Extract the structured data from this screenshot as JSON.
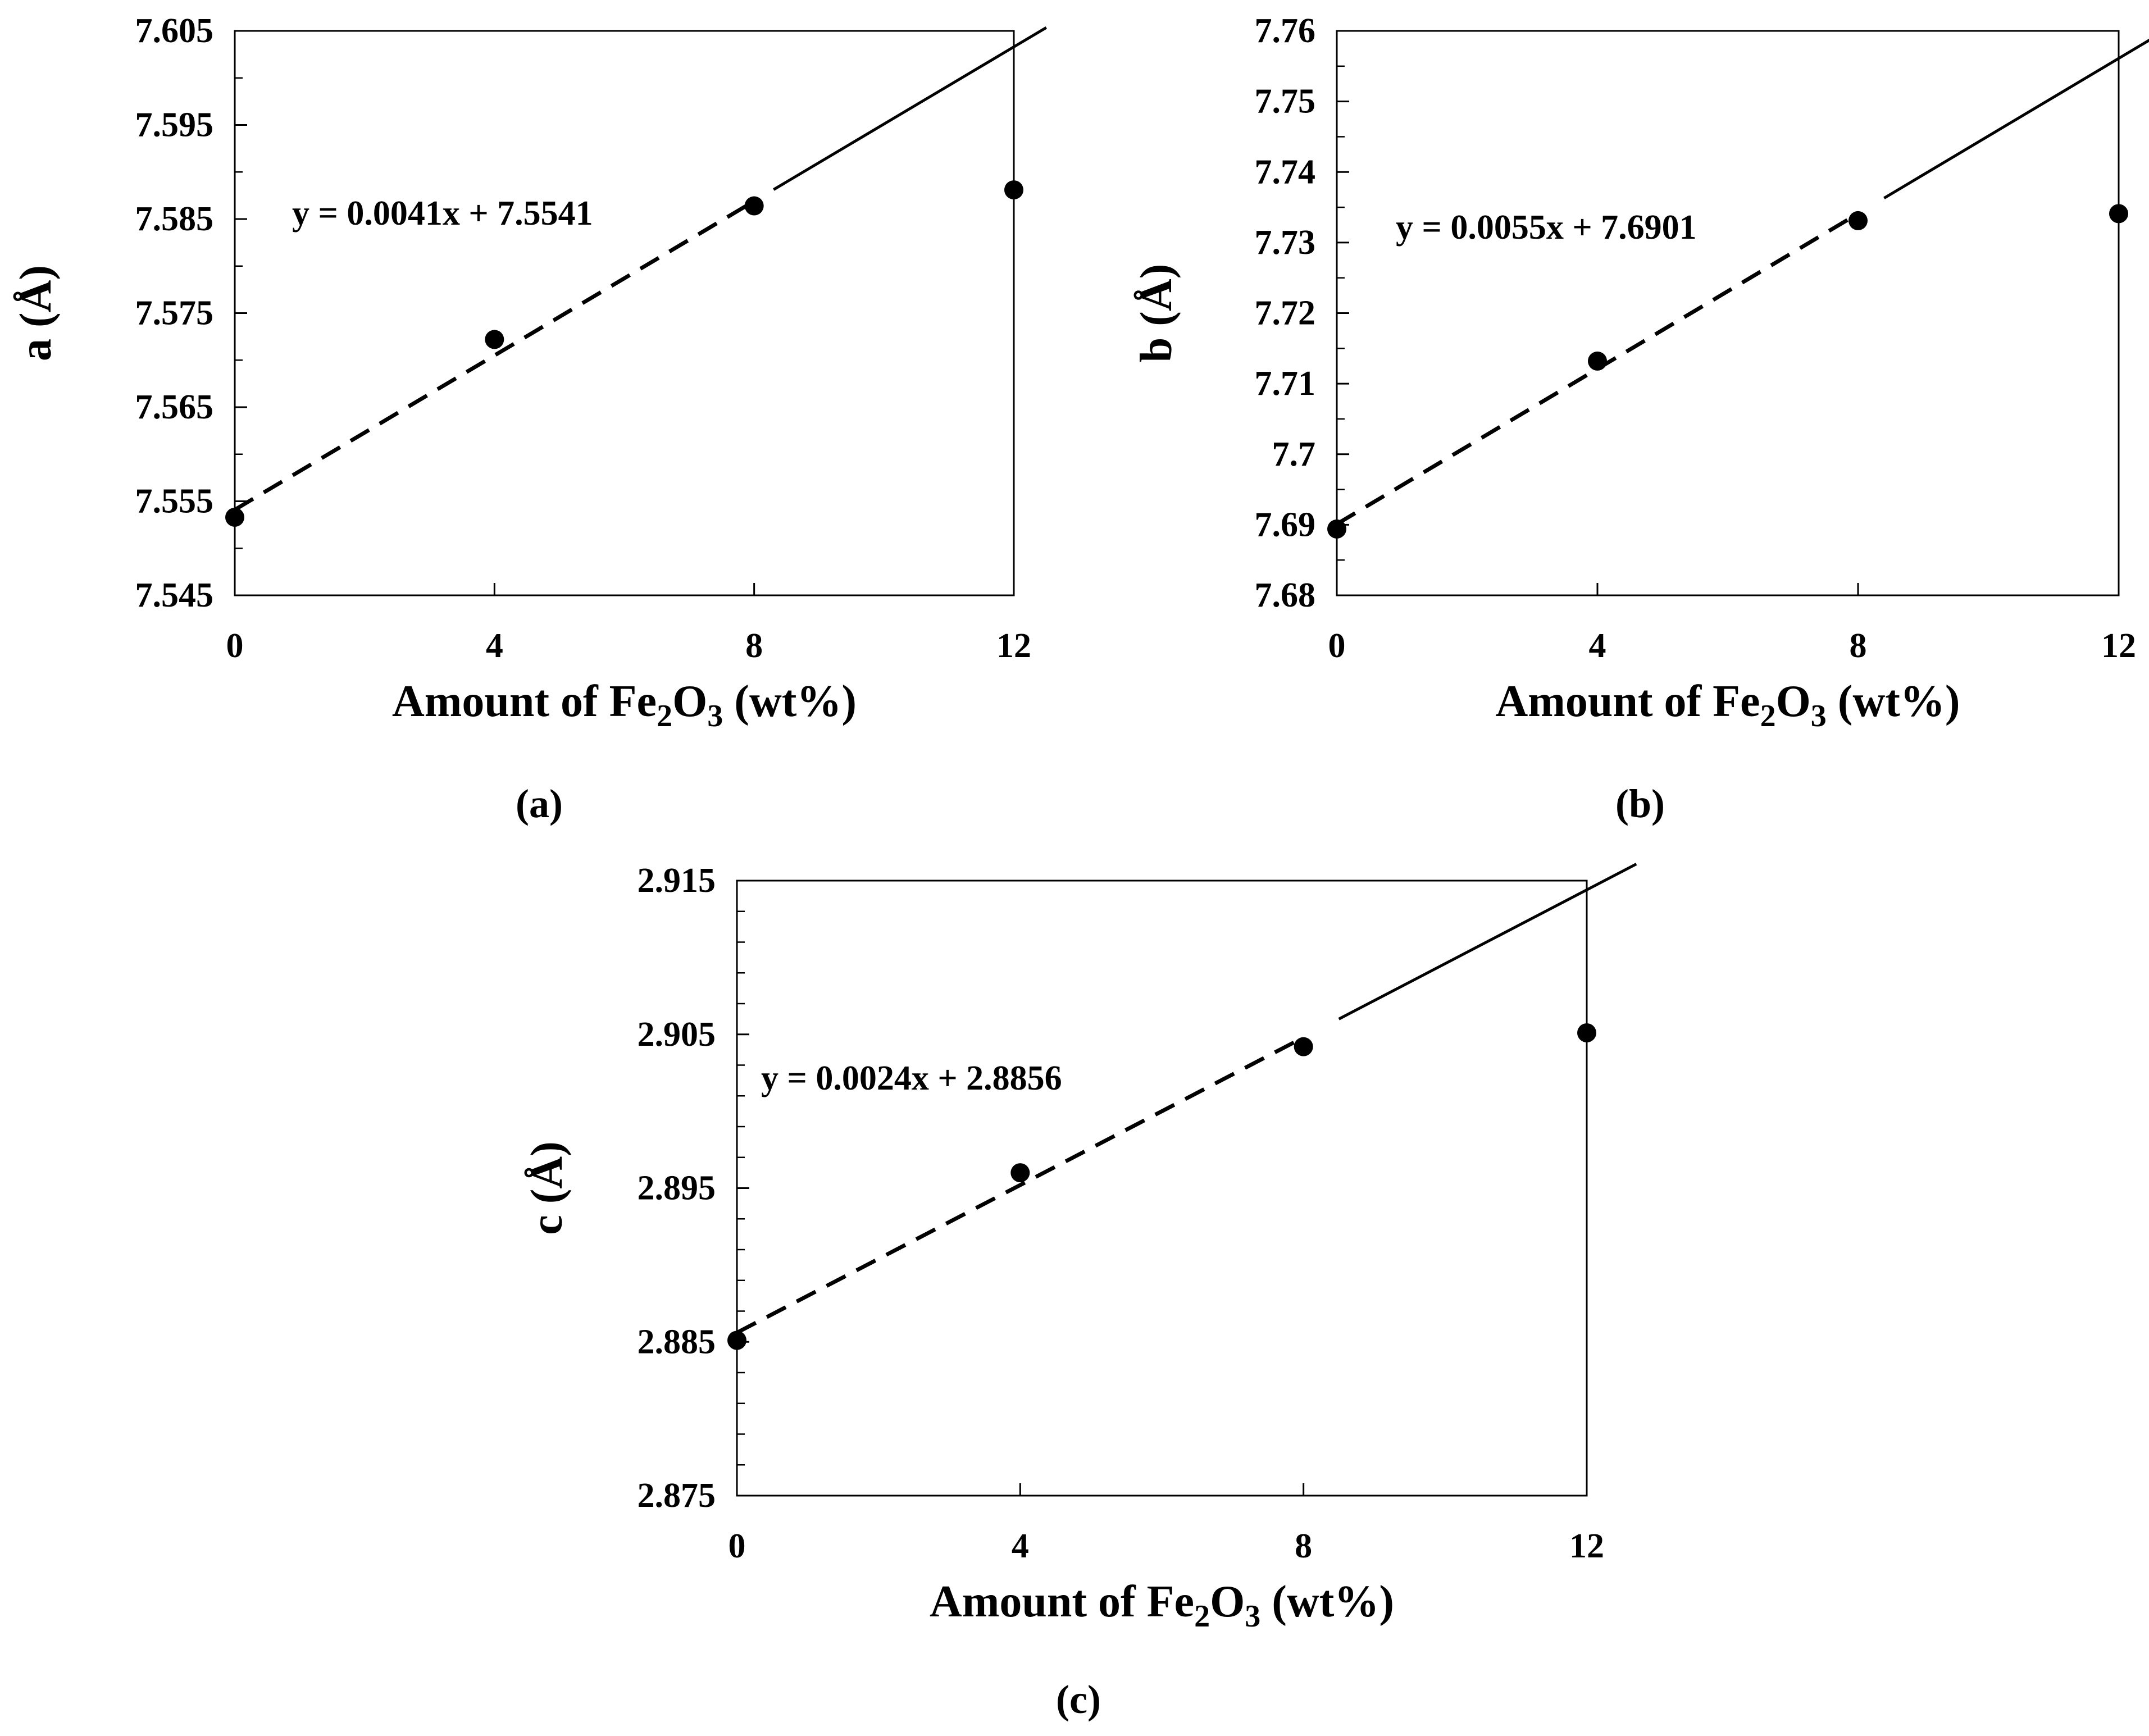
{
  "chart_data": [
    {
      "type": "scatter",
      "panel_label": "(a)",
      "xlabel": {
        "prefix": "Amount of Fe",
        "sub1": "2",
        "mid": "O",
        "sub2": "3",
        "suffix": " (wt%)"
      },
      "ylabel": "a (Å)",
      "xlim": [
        0,
        12
      ],
      "ylim": [
        7.545,
        7.605
      ],
      "xticks": [
        0,
        4,
        8,
        12
      ],
      "yticks": [
        7.545,
        7.555,
        7.565,
        7.575,
        7.585,
        7.595,
        7.605
      ],
      "ytick_labels": [
        "7.545",
        "7.555",
        "7.565",
        "7.575",
        "7.585",
        "7.595",
        "7.605"
      ],
      "minor_yticks": 1,
      "points": {
        "x": [
          0,
          4,
          8,
          12
        ],
        "y": [
          7.5533,
          7.5722,
          7.5864,
          7.5881
        ]
      },
      "fit": {
        "equation": "y = 0.0041x + 7.5541",
        "slope": 0.0041,
        "intercept": 7.5541,
        "dashed_range": [
          0,
          8
        ],
        "solid_range": [
          8.3,
          12.5
        ]
      }
    },
    {
      "type": "scatter",
      "panel_label": "(b)",
      "xlabel": {
        "prefix": "Amount of Fe",
        "sub1": "2",
        "mid": "O",
        "sub2": "3",
        "suffix": " (wt%)"
      },
      "ylabel": "b (Å)",
      "xlim": [
        0,
        12
      ],
      "ylim": [
        7.68,
        7.76
      ],
      "xticks": [
        0,
        4,
        8,
        12
      ],
      "yticks": [
        7.68,
        7.69,
        7.7,
        7.71,
        7.72,
        7.73,
        7.74,
        7.75,
        7.76
      ],
      "ytick_labels": [
        "7.68",
        "7.69",
        "7.7",
        "7.71",
        "7.72",
        "7.73",
        "7.74",
        "7.75",
        "7.76"
      ],
      "minor_yticks": 1,
      "points": {
        "x": [
          0,
          4,
          8,
          12
        ],
        "y": [
          7.6894,
          7.7132,
          7.7331,
          7.7341
        ]
      },
      "fit": {
        "equation": "y = 0.0055x + 7.6901",
        "slope": 0.0055,
        "intercept": 7.6901,
        "dashed_range": [
          0,
          8
        ],
        "solid_range": [
          8.4,
          12.6
        ]
      }
    },
    {
      "type": "scatter",
      "panel_label": "(c)",
      "xlabel": {
        "prefix": "Amount of Fe",
        "sub1": "2",
        "mid": "O",
        "sub2": "3",
        "suffix": " (wt%)"
      },
      "ylabel": "c (Å)",
      "xlim": [
        0,
        12
      ],
      "ylim": [
        2.875,
        2.915
      ],
      "xticks": [
        0,
        4,
        8,
        12
      ],
      "yticks": [
        2.875,
        2.885,
        2.895,
        2.905,
        2.915
      ],
      "ytick_labels": [
        "2.875",
        "2.885",
        "2.895",
        "2.905",
        "2.915"
      ],
      "minor_yticks": 4,
      "points": {
        "x": [
          0,
          4,
          8,
          12
        ],
        "y": [
          2.8851,
          2.896,
          2.9042,
          2.9051
        ]
      },
      "fit": {
        "equation": "y = 0.0024x + 2.8856",
        "slope": 0.0024,
        "intercept": 2.8856,
        "dashed_range": [
          0,
          8
        ],
        "solid_range": [
          8.5,
          12.7
        ]
      }
    }
  ]
}
